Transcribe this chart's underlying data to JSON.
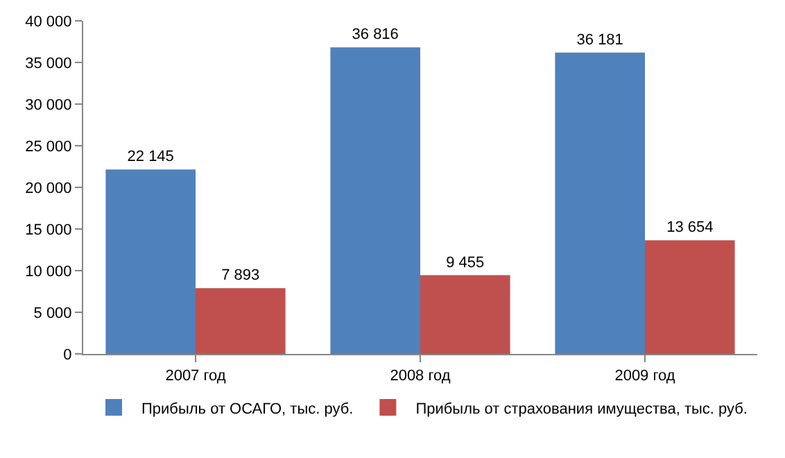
{
  "chart_data": {
    "type": "bar",
    "categories": [
      "2007 год",
      "2008 год",
      "2009 год"
    ],
    "series": [
      {
        "name": "Прибыль от ОСАГО, тыс. руб.",
        "color": "#4f81bd",
        "values": [
          22145,
          36816,
          36181
        ],
        "value_labels": [
          "22 145",
          "36 816",
          "36 181"
        ]
      },
      {
        "name": "Прибыль от страхования имущества, тыс. руб.",
        "color": "#c0504d",
        "values": [
          7893,
          9455,
          13654
        ],
        "value_labels": [
          "7 893",
          "9 455",
          "13 654"
        ]
      }
    ],
    "ylim": [
      0,
      40000
    ],
    "yticks": [
      0,
      {
        "value": 5000,
        "label": "5 000"
      },
      {
        "value": 10000,
        "label": "10 000"
      },
      {
        "value": 15000,
        "label": "15 000"
      },
      {
        "value": 20000,
        "label": "20 000"
      },
      {
        "value": 25000,
        "label": "25 000"
      },
      {
        "value": 30000,
        "label": "30 000"
      },
      {
        "value": 35000,
        "label": "35 000"
      },
      {
        "value": 40000,
        "label": "40 000"
      }
    ],
    "grid": false,
    "legend": "bottom"
  }
}
